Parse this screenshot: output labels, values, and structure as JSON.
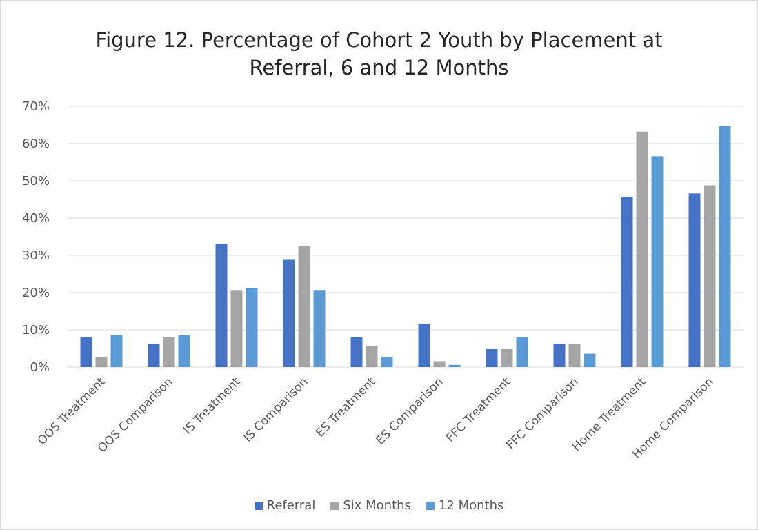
{
  "chart_data": {
    "type": "bar",
    "title": "Figure 12. Percentage of Cohort 2 Youth by Placement at Referral, 6 and 12 Months",
    "title_lines": [
      "Figure 12. Percentage of Cohort 2 Youth by Placement at",
      "Referral, 6 and 12 Months"
    ],
    "categories": [
      "OOS Treatment",
      "OOS Comparison",
      "IS Treatment",
      "IS Comparison",
      "ES Treatment",
      "ES Comparison",
      "FFC Treatment",
      "FFC Comparison",
      "Home Treatment",
      "Home Comparison"
    ],
    "series": [
      {
        "name": "Referral",
        "color": "#4472c4",
        "values": [
          8.1,
          6.2,
          33.1,
          28.8,
          8.1,
          11.6,
          5.0,
          6.2,
          45.7,
          46.6
        ]
      },
      {
        "name": "Six Months",
        "color": "#a5a5a5",
        "values": [
          2.6,
          8.1,
          20.7,
          32.5,
          5.7,
          1.6,
          5.0,
          6.2,
          63.2,
          48.8
        ]
      },
      {
        "name": "12 Months",
        "color": "#5b9bd5",
        "values": [
          8.6,
          8.6,
          21.2,
          20.7,
          2.6,
          0.6,
          8.1,
          3.6,
          56.6,
          64.7
        ]
      }
    ],
    "ylim": [
      0,
      70
    ],
    "yticks": [
      0,
      10,
      20,
      30,
      40,
      50,
      60,
      70
    ],
    "ytick_labels": [
      "0%",
      "10%",
      "20%",
      "30%",
      "40%",
      "50%",
      "60%",
      "70%"
    ],
    "xlabel": "",
    "ylabel": "",
    "grid": true,
    "legend_position": "bottom"
  }
}
